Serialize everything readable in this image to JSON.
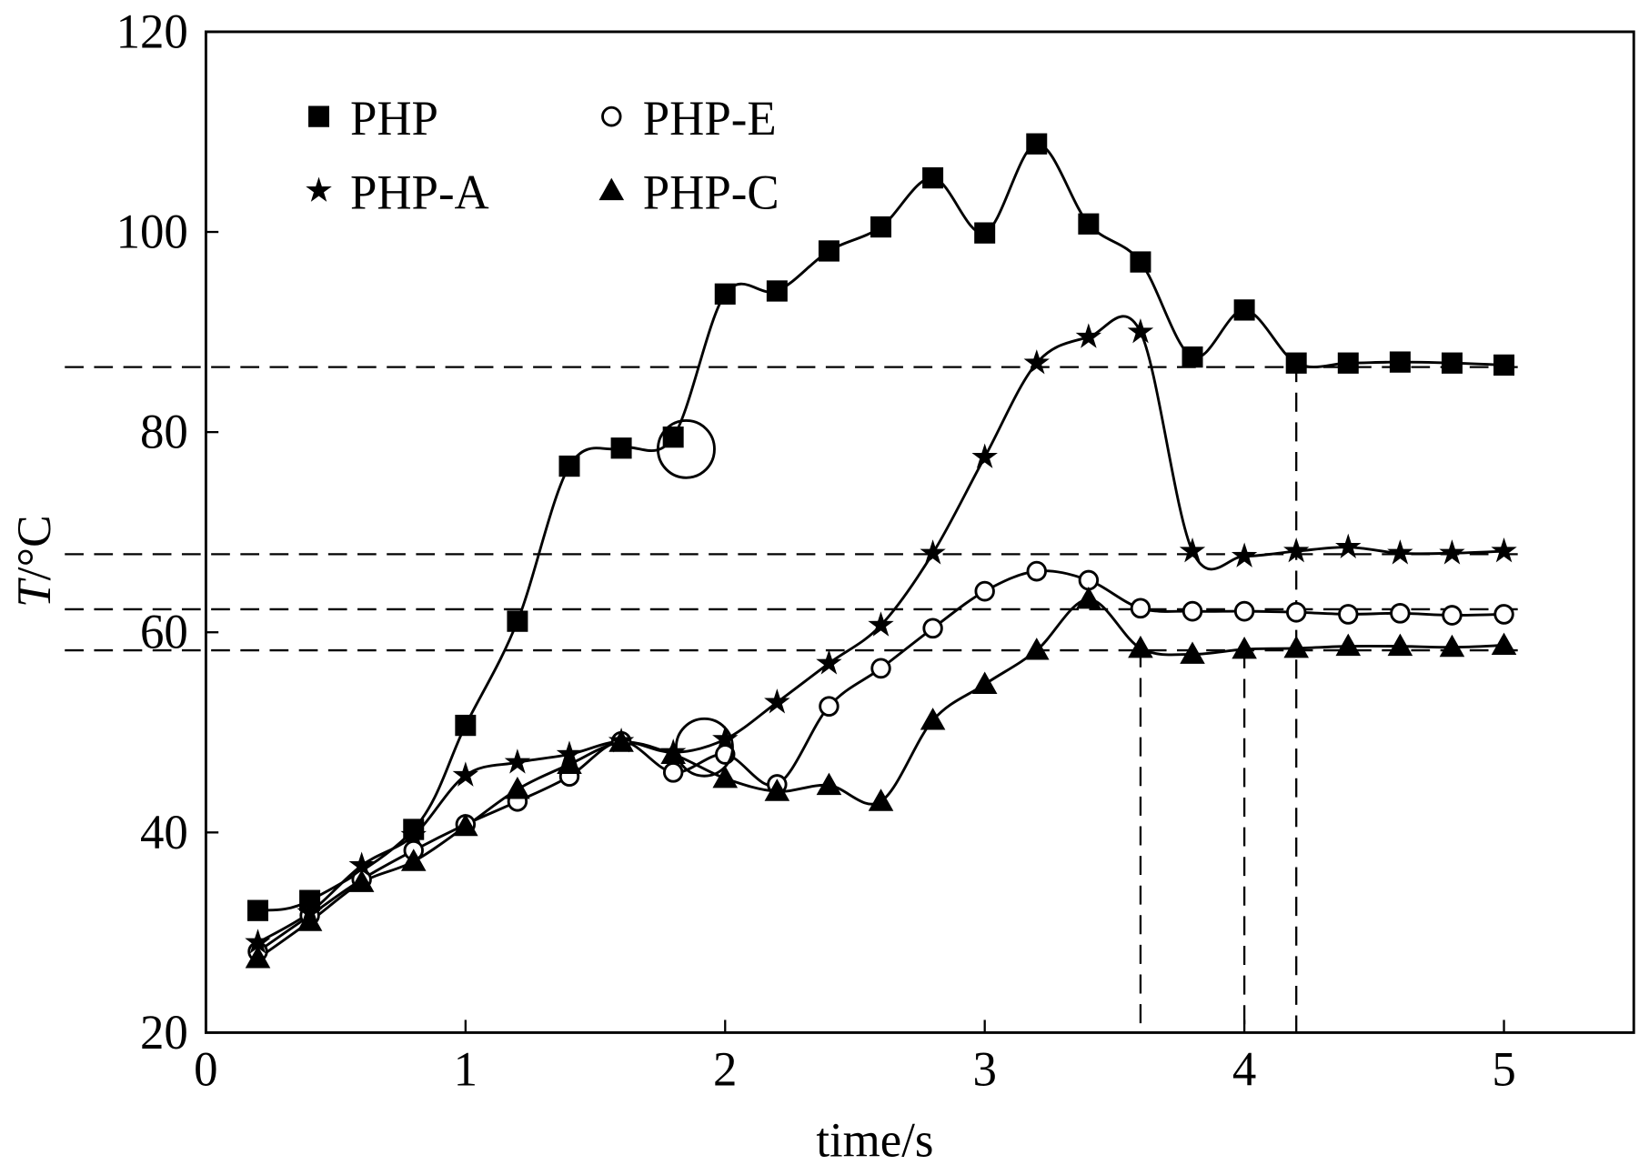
{
  "chart_data": {
    "type": "line",
    "title": "",
    "xlabel": "time/s",
    "ylabel_italic": "T",
    "ylabel_rest": "/°C",
    "xlim": [
      0,
      5.5
    ],
    "ylim": [
      20,
      120
    ],
    "xticks": [
      0,
      1,
      2,
      3,
      4,
      5
    ],
    "yticks": [
      20,
      40,
      60,
      80,
      100,
      120
    ],
    "grid": false,
    "legend_position": "top-left",
    "series": [
      {
        "name": "PHP",
        "marker": "square",
        "x": [
          0.2,
          0.4,
          0.8,
          1.0,
          1.2,
          1.4,
          1.6,
          1.8,
          2.0,
          2.2,
          2.4,
          2.6,
          2.8,
          3.0,
          3.2,
          3.4,
          3.6,
          3.8,
          4.0,
          4.2,
          4.4,
          4.6,
          4.8,
          5.0
        ],
        "y": [
          32.2,
          33.2,
          40.3,
          50.7,
          61.1,
          76.6,
          78.4,
          79.5,
          93.8,
          94.1,
          98.1,
          100.5,
          105.4,
          99.9,
          108.8,
          100.8,
          97.0,
          87.5,
          92.2,
          86.9,
          86.9,
          87.0,
          86.9,
          86.7
        ]
      },
      {
        "name": "PHP-E",
        "marker": "circle",
        "x": [
          0.2,
          0.4,
          0.6,
          0.8,
          1.0,
          1.2,
          1.4,
          1.6,
          1.8,
          2.0,
          2.2,
          2.4,
          2.6,
          2.8,
          3.0,
          3.2,
          3.4,
          3.6,
          3.8,
          4.0,
          4.2,
          4.4,
          4.6,
          4.8,
          5.0
        ],
        "y": [
          28.1,
          31.7,
          35.3,
          38.2,
          40.8,
          43.1,
          45.6,
          49.1,
          46.0,
          47.8,
          44.8,
          52.6,
          56.4,
          60.4,
          64.1,
          66.1,
          65.2,
          62.4,
          62.1,
          62.1,
          62.0,
          61.8,
          61.9,
          61.7,
          61.8
        ]
      },
      {
        "name": "PHP-A",
        "marker": "star",
        "x": [
          0.2,
          0.4,
          0.6,
          0.8,
          1.0,
          1.2,
          1.4,
          1.6,
          1.8,
          2.0,
          2.2,
          2.4,
          2.6,
          2.8,
          3.0,
          3.2,
          3.4,
          3.6,
          3.8,
          4.0,
          4.2,
          4.4,
          4.6,
          4.8,
          5.0
        ],
        "y": [
          29.0,
          32.0,
          36.7,
          39.7,
          45.7,
          47.0,
          47.8,
          49.1,
          48.0,
          49.3,
          53.0,
          56.9,
          60.7,
          67.9,
          77.5,
          86.9,
          89.5,
          90.0,
          68.1,
          67.6,
          68.1,
          68.5,
          67.9,
          67.9,
          68.1
        ]
      },
      {
        "name": "PHP-C",
        "marker": "triangle",
        "x": [
          0.2,
          0.4,
          0.6,
          0.8,
          1.0,
          1.2,
          1.4,
          1.6,
          1.8,
          2.0,
          2.2,
          2.4,
          2.6,
          2.8,
          3.0,
          3.2,
          3.4,
          3.6,
          3.8,
          4.0,
          4.2,
          4.4,
          4.6,
          4.8,
          5.0
        ],
        "y": [
          27.4,
          31.1,
          35.0,
          37.1,
          40.6,
          44.3,
          46.8,
          49.0,
          47.8,
          45.4,
          44.1,
          44.7,
          43.1,
          51.2,
          54.8,
          58.2,
          63.3,
          58.4,
          57.8,
          58.3,
          58.4,
          58.6,
          58.6,
          58.5,
          58.7
        ]
      }
    ],
    "reference_lines": {
      "horizontal_y": [
        86.5,
        67.8,
        62.3,
        58.2
      ],
      "vertical": [
        {
          "x": 3.6,
          "y_top": 58.4
        },
        {
          "x": 4.0,
          "y_top": 58.3
        },
        {
          "x": 4.2,
          "y_top": 86.9
        }
      ]
    },
    "annotation_circles": [
      {
        "x": 1.85,
        "y": 78.3
      },
      {
        "x": 1.92,
        "y": 48.5
      }
    ]
  }
}
